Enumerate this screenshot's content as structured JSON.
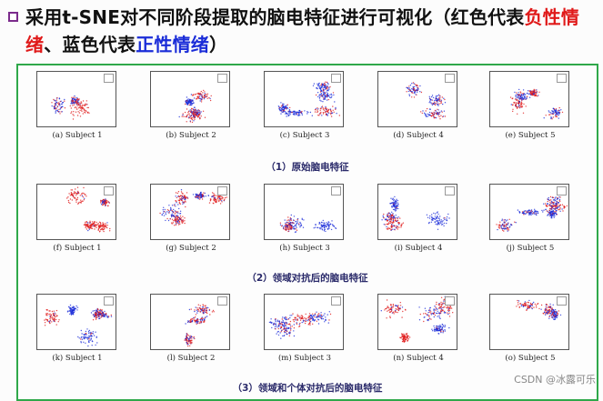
{
  "slide": {
    "title_prefix": "采用t-SNE对不同阶段提取的脑电特征进行可视化（红色代表",
    "title_negative": "负性情绪",
    "title_middle": "、蓝色代表",
    "title_positive": "正性情绪",
    "title_suffix": "）"
  },
  "colors": {
    "red": "#e01a1a",
    "blue": "#1a2cd8",
    "frame": "#2fa84a"
  },
  "rows": [
    {
      "caption": "（1）原始脑电特征",
      "panels": [
        {
          "label": "(a) Subject 1"
        },
        {
          "label": "(b) Subject 2"
        },
        {
          "label": "(c) Subject 3"
        },
        {
          "label": "(d) Subject 4"
        },
        {
          "label": "(e) Subject 5"
        }
      ]
    },
    {
      "caption": "（2）领域对抗后的脑电特征",
      "panels": [
        {
          "label": "(f) Subject 1"
        },
        {
          "label": "(g) Subject 2"
        },
        {
          "label": "(h) Subject 3"
        },
        {
          "label": "(i) Subject 4"
        },
        {
          "label": "(j) Subject 5"
        }
      ]
    },
    {
      "caption": "（3）领域和个体对抗后的脑电特征",
      "panels": [
        {
          "label": "(k) Subject 1"
        },
        {
          "label": "(l) Subject 2"
        },
        {
          "label": "(m) Subject 3"
        },
        {
          "label": "(n) Subject 4"
        },
        {
          "label": "(o) Subject 5"
        }
      ]
    }
  ],
  "watermark": "CSDN @冰露可乐"
}
